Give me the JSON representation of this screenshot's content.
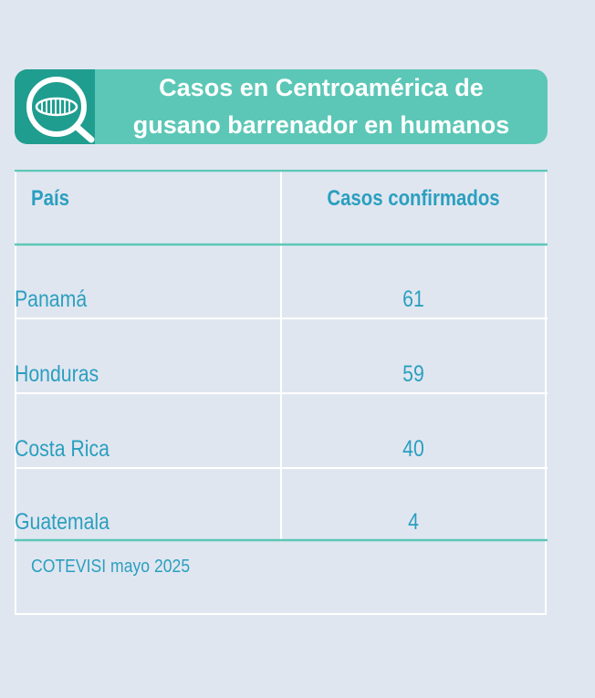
{
  "title_line1": "Casos en Centroamérica de",
  "title_line2": "gusano barrenador en humanos",
  "chart_data": {
    "type": "table",
    "columns": [
      "País",
      "Casos confirmados"
    ],
    "rows": [
      [
        "Panamá",
        "61"
      ],
      [
        "Honduras",
        "59"
      ],
      [
        "Costa Rica",
        "40"
      ],
      [
        "Guatemala",
        "4"
      ]
    ],
    "values": [
      61,
      59,
      40,
      4
    ],
    "categories": [
      "Panamá",
      "Honduras",
      "Costa Rica",
      "Guatemala"
    ]
  },
  "source_note": "COTEVISI mayo 2025",
  "colors": {
    "banner": "#5cc7b7",
    "logo_bg": "#1f9d8f",
    "text": "#2a9fbf",
    "grid_line": "#ffffff",
    "accent_line": "#5cc7b7",
    "background": "#e0e6f0"
  },
  "logo_icon": "magnifier-worm-icon"
}
